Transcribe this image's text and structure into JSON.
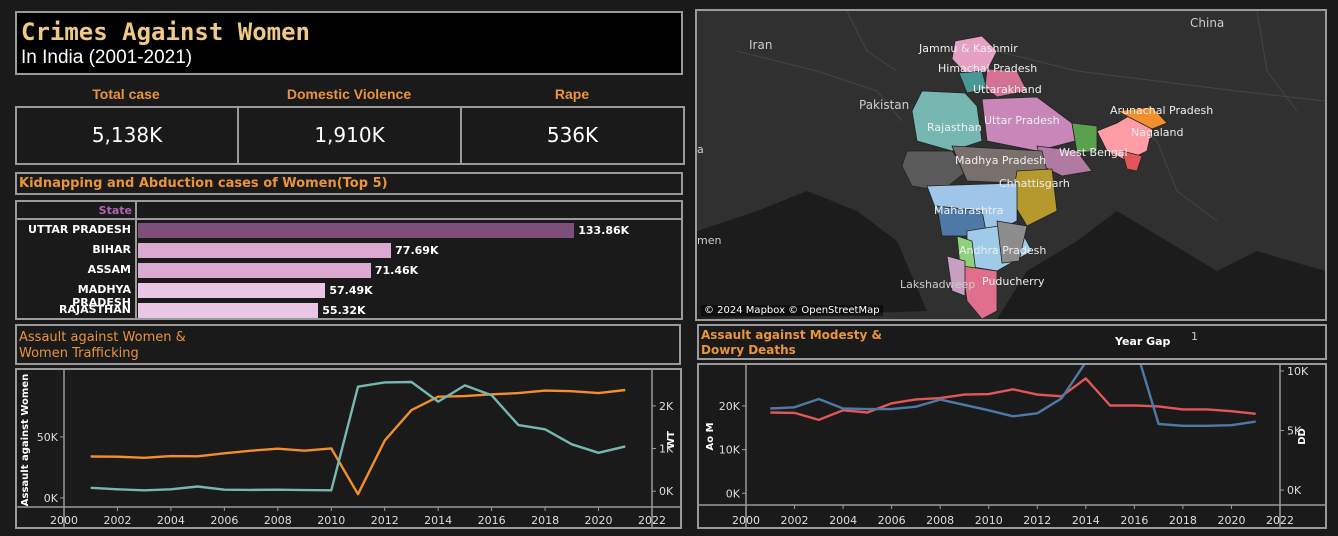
{
  "header": {
    "title": "Crimes Against Women",
    "subtitle": "In India (2001-2021)"
  },
  "kpis": [
    {
      "label": "Total case",
      "value": "5,138K"
    },
    {
      "label": "Domestic Violence",
      "value": "1,910K"
    },
    {
      "label": "Rape",
      "value": "536K"
    }
  ],
  "kidnapping": {
    "title": "Kidnapping and Abduction cases of Women(Top 5)",
    "column_header": "State"
  },
  "assault": {
    "title_line1": "Assault against Women &",
    "title_line2": "Women Trafficking"
  },
  "modesty": {
    "title_line1": "Assault against Modesty &",
    "title_line2": "Dowry Deaths",
    "year_gap_label": "Year Gap",
    "year_gap_value": "1"
  },
  "map": {
    "copyright": "© 2024 Mapbox © OpenStreetMap",
    "labels": [
      "China",
      "Iran",
      "Pakistan",
      "Jammu & Kashmir",
      "Himachal Pradesh",
      "Uttarakhand",
      "Rajasthan",
      "Uttar Pradesh",
      "Arunachal Pradesh",
      "Nagaland",
      "West Bengal",
      "Madhya Pradesh",
      "Chhattisgarh",
      "Maharashtra",
      "Andhra Pradesh",
      "Puducherry",
      "Lakshadweep",
      "men",
      "a"
    ]
  },
  "colors": {
    "orange": "#f28e2b",
    "teal": "#76b7b2",
    "red": "#e15759",
    "blue": "#4e79a7",
    "bar_dark": "#7d4f7a",
    "bar_mid": "#dba8cf",
    "bar_light": "#eac6e4",
    "accent": "#e8943a"
  },
  "chart_data": [
    {
      "type": "bar",
      "title": "Kidnapping and Abduction cases of Women(Top 5)",
      "categories": [
        "UTTAR PRADESH",
        "BIHAR",
        "ASSAM",
        "MADHYA PRADESH",
        "RAJASTHAN"
      ],
      "values": [
        133.86,
        77.69,
        71.46,
        57.49,
        55.32
      ],
      "labels": [
        "133.86K",
        "77.69K",
        "71.46K",
        "57.49K",
        "55.32K"
      ],
      "xlim": [
        0,
        150
      ]
    },
    {
      "type": "line",
      "x": [
        2001,
        2002,
        2003,
        2004,
        2005,
        2006,
        2007,
        2008,
        2009,
        2010,
        2011,
        2012,
        2013,
        2014,
        2015,
        2016,
        2017,
        2018,
        2019,
        2020,
        2021
      ],
      "xticks": [
        "2000",
        "2002",
        "2004",
        "2006",
        "2008",
        "2010",
        "2012",
        "2014",
        "2016",
        "2018",
        "2020",
        "2022"
      ],
      "xlim": [
        2000,
        2022
      ],
      "ylabel_left": "Assault against Women",
      "ylabel_right": "WT",
      "ylim_left": [
        -5000,
        100000
      ],
      "yticks_left": [
        "0K",
        "50K"
      ],
      "ylim_right": [
        -300,
        2700
      ],
      "yticks_right": [
        "0K",
        "1K",
        "2K"
      ],
      "series": [
        {
          "axis": "left",
          "values": [
            34000,
            33800,
            32900,
            34300,
            34100,
            36600,
            38700,
            40400,
            38700,
            40600,
            3000,
            47000,
            72000,
            83000,
            83500,
            85000,
            86000,
            88000,
            87500,
            86000,
            88500
          ]
        },
        {
          "axis": "right",
          "values": [
            80,
            45,
            20,
            45,
            110,
            35,
            30,
            35,
            25,
            20,
            2450,
            2550,
            2560,
            2100,
            2480,
            2250,
            1550,
            1450,
            1100,
            900,
            1050
          ]
        }
      ]
    },
    {
      "type": "line",
      "x": [
        2001,
        2002,
        2003,
        2004,
        2005,
        2006,
        2007,
        2008,
        2009,
        2010,
        2011,
        2012,
        2013,
        2014,
        2015,
        2016,
        2017,
        2018,
        2019,
        2020,
        2021
      ],
      "xticks": [
        "2000",
        "2002",
        "2004",
        "2006",
        "2008",
        "2010",
        "2012",
        "2014",
        "2016",
        "2018",
        "2020",
        "2022"
      ],
      "xlim": [
        2000,
        2022
      ],
      "ylabel_left": "Ao M",
      "ylabel_right": "DD",
      "ylim_left": [
        -2000,
        28000
      ],
      "yticks_left": [
        "0K",
        "10K",
        "20K"
      ],
      "ylim_right": [
        -1000,
        10000
      ],
      "yticks_right": [
        "0K",
        "5K",
        "10K"
      ],
      "series": [
        {
          "axis": "left",
          "values": [
            18500,
            18400,
            16800,
            19000,
            18500,
            20600,
            21500,
            21800,
            22600,
            22700,
            23800,
            22600,
            22200,
            26300,
            20100,
            20100,
            19900,
            19200,
            19200,
            18800,
            18200
          ]
        },
        {
          "axis": "right",
          "values": [
            6850,
            6950,
            7650,
            6850,
            6800,
            6800,
            7000,
            7600,
            7150,
            6700,
            6200,
            6450,
            7700,
            10750,
            11300,
            12300,
            5550,
            5400,
            5400,
            5450,
            5750
          ]
        }
      ]
    }
  ]
}
